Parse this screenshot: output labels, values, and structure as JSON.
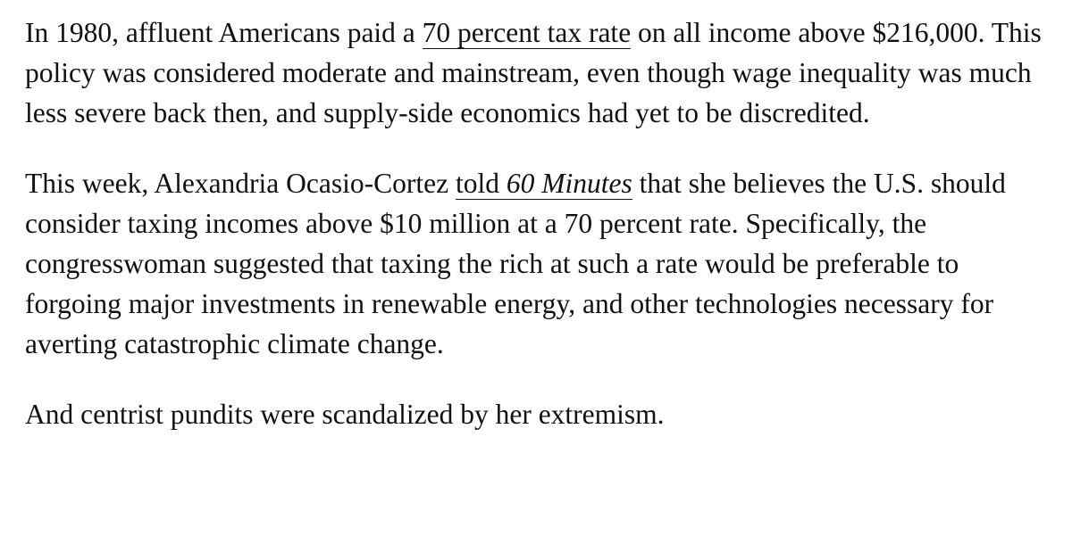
{
  "article": {
    "paragraphs": [
      {
        "before_link": "In 1980, affluent Americans paid a ",
        "link_text": "70 percent tax rate",
        "after_link": " on all income above $216,000. This policy was considered moderate and mainstream, even though wage inequality was much less severe back then, and supply-side economics had yet to be discredited."
      },
      {
        "before_link": "This week, Alexandria Ocasio-Cortez ",
        "link_text_plain": "told ",
        "link_text_italic": "60 Minutes",
        "after_link": " that she believes the U.S. should consider taxing incomes above $10 million at a 70 percent rate. Specifically, the congresswoman suggested that taxing the rich at such a rate would be preferable to forgoing major investments in renewable energy, and other technologies necessary for averting catastrophic climate change."
      },
      {
        "text": "And centrist pundits were scandalized by her extremism."
      }
    ]
  }
}
